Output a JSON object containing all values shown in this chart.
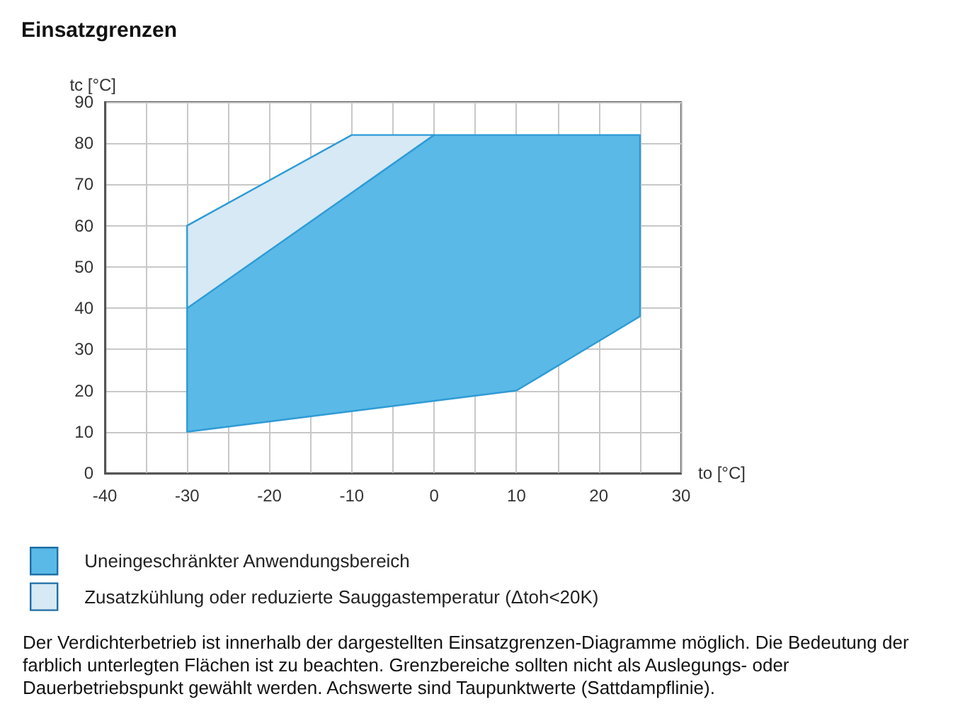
{
  "chart_data": {
    "type": "area",
    "title": "Einsatzgrenzen",
    "xlabel": "to [°C]",
    "ylabel": "tc [°C]",
    "series": [
      {
        "name": "Uneingeschränkter Anwendungsbereich",
        "color": "#5ab9e6",
        "x": [
          -30,
          -30,
          0,
          25,
          25,
          10
        ],
        "values": [
          10,
          40,
          82,
          82,
          38,
          20
        ]
      },
      {
        "name": "Zusatzkühlung oder reduzierte Sauggastemperatur (Δtoh<20K)",
        "color": "#d6e9f5",
        "x": [
          -30,
          -30,
          -10,
          0
        ],
        "values": [
          40,
          60,
          82,
          82
        ]
      }
    ],
    "xlim": [
      -40,
      30
    ],
    "xticks": [
      -40,
      {
        "value": -35,
        "label": null
      },
      -30,
      {
        "value": -25,
        "label": null
      },
      -20,
      {
        "value": -15,
        "label": null
      },
      -10,
      {
        "value": -5,
        "label": null
      },
      0,
      {
        "value": 5,
        "label": null
      },
      10,
      {
        "value": 15,
        "label": null
      },
      20,
      {
        "value": 25,
        "label": null
      },
      30
    ],
    "ylim": [
      0,
      90
    ],
    "yticks": [
      0,
      10,
      20,
      30,
      40,
      50,
      60,
      70,
      80,
      90
    ],
    "grid": true,
    "legend": "bottom left",
    "annotations": [
      "Der Verdichterbetrieb ist innerhalb der dargestellten Einsatzgrenzen-Diagramme möglich. Die Bedeutung der farblich unterlegten Flächen ist zu beachten. Grenzbereiche sollten nicht als Auslegungs- oder Dauerbetriebspunkt gewählt werden. Achswerte sind Taupunktwerte (Sattdampflinie)."
    ]
  }
}
